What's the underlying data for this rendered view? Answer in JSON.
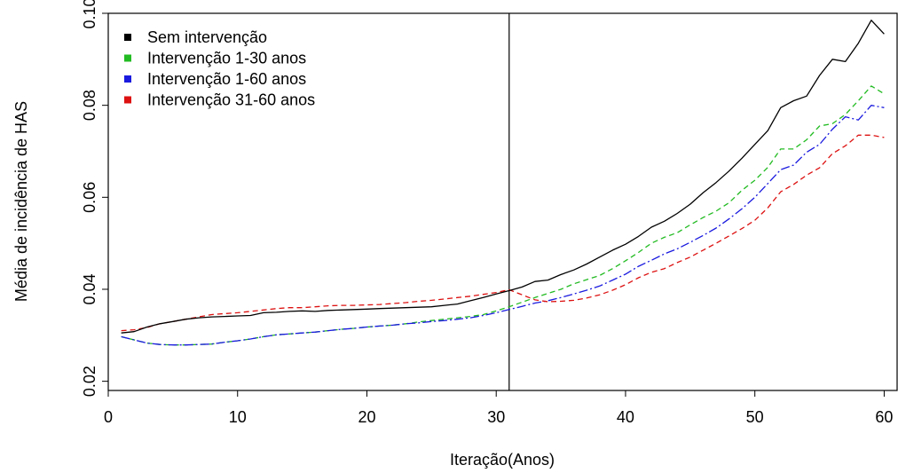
{
  "chart_data": {
    "type": "line",
    "xlabel": "Iteração(Anos)",
    "ylabel": "Média de incidência de HAS",
    "xlim": [
      0,
      61
    ],
    "ylim": [
      0.018,
      0.1
    ],
    "x_ticks": [
      0,
      10,
      20,
      30,
      40,
      50,
      60
    ],
    "y_ticks": [
      0.02,
      0.04,
      0.06,
      0.08,
      0.1
    ],
    "x_tick_labels": [
      "0",
      "10",
      "20",
      "30",
      "40",
      "50",
      "60"
    ],
    "y_tick_labels": [
      "0.02",
      "0.04",
      "0.06",
      "0.08",
      "0.10"
    ],
    "vertical_line_x": 31,
    "grid": false,
    "legend_position": "top-left",
    "x": [
      1,
      2,
      3,
      4,
      5,
      6,
      7,
      8,
      9,
      10,
      11,
      12,
      13,
      14,
      15,
      16,
      17,
      18,
      19,
      20,
      21,
      22,
      23,
      24,
      25,
      26,
      27,
      28,
      29,
      30,
      31,
      32,
      33,
      34,
      35,
      36,
      37,
      38,
      39,
      40,
      41,
      42,
      43,
      44,
      45,
      46,
      47,
      48,
      49,
      50,
      51,
      52,
      53,
      54,
      55,
      56,
      57,
      58,
      59,
      60
    ],
    "series": [
      {
        "name": "Sem intervenção",
        "color": "#000000",
        "dash": "solid",
        "values": [
          0.0305,
          0.0308,
          0.0318,
          0.0325,
          0.033,
          0.0335,
          0.0338,
          0.034,
          0.0341,
          0.0342,
          0.0343,
          0.0349,
          0.035,
          0.0352,
          0.0353,
          0.0352,
          0.0354,
          0.0355,
          0.0356,
          0.0357,
          0.0358,
          0.0359,
          0.036,
          0.0361,
          0.0362,
          0.0365,
          0.0368,
          0.0375,
          0.0382,
          0.039,
          0.0397,
          0.0405,
          0.0417,
          0.042,
          0.0432,
          0.0442,
          0.0455,
          0.047,
          0.0485,
          0.0498,
          0.0515,
          0.0535,
          0.0548,
          0.0565,
          0.0585,
          0.061,
          0.0632,
          0.0657,
          0.0685,
          0.0715,
          0.0745,
          0.0795,
          0.081,
          0.082,
          0.0865,
          0.09,
          0.0895,
          0.0935,
          0.0985,
          0.0955
        ]
      },
      {
        "name": "Intervenção 1-30 anos",
        "color": "#22bb22",
        "dash": "6,4",
        "values": [
          0.0297,
          0.029,
          0.0283,
          0.028,
          0.0279,
          0.0279,
          0.028,
          0.0281,
          0.0285,
          0.0288,
          0.0292,
          0.0297,
          0.0301,
          0.0303,
          0.0305,
          0.0307,
          0.031,
          0.0313,
          0.0315,
          0.0318,
          0.032,
          0.0322,
          0.0325,
          0.0329,
          0.0332,
          0.0335,
          0.0338,
          0.0341,
          0.0345,
          0.0353,
          0.0362,
          0.0372,
          0.0382,
          0.0391,
          0.04,
          0.0412,
          0.0421,
          0.043,
          0.0445,
          0.0462,
          0.048,
          0.05,
          0.0513,
          0.0523,
          0.054,
          0.0556,
          0.057,
          0.0588,
          0.0615,
          0.0637,
          0.0665,
          0.0705,
          0.0705,
          0.0725,
          0.0755,
          0.076,
          0.078,
          0.081,
          0.0842,
          0.0825
        ]
      },
      {
        "name": "Intervenção 1-60 anos",
        "color": "#1a1adf",
        "dash": "10,3,2,3",
        "values": [
          0.0297,
          0.029,
          0.0283,
          0.028,
          0.0279,
          0.0279,
          0.028,
          0.0281,
          0.0285,
          0.0288,
          0.0292,
          0.0297,
          0.0301,
          0.0303,
          0.0305,
          0.0307,
          0.031,
          0.0313,
          0.0315,
          0.0318,
          0.032,
          0.0322,
          0.0325,
          0.0327,
          0.033,
          0.0332,
          0.0335,
          0.0338,
          0.0343,
          0.0349,
          0.0356,
          0.0363,
          0.037,
          0.0375,
          0.0382,
          0.039,
          0.0398,
          0.0407,
          0.042,
          0.0433,
          0.045,
          0.0463,
          0.0477,
          0.0488,
          0.0502,
          0.0517,
          0.0533,
          0.0553,
          0.0575,
          0.06,
          0.063,
          0.066,
          0.067,
          0.0698,
          0.0715,
          0.0748,
          0.0775,
          0.0768,
          0.08,
          0.0795
        ]
      },
      {
        "name": "Intervenção 31-60 anos",
        "color": "#dd1111",
        "dash": "6,4",
        "values": [
          0.031,
          0.0312,
          0.0317,
          0.0325,
          0.033,
          0.0335,
          0.034,
          0.0345,
          0.0347,
          0.0349,
          0.0352,
          0.0355,
          0.0358,
          0.036,
          0.036,
          0.0362,
          0.0364,
          0.0365,
          0.0365,
          0.0366,
          0.0367,
          0.0369,
          0.0371,
          0.0374,
          0.0376,
          0.0379,
          0.0382,
          0.0385,
          0.0389,
          0.0393,
          0.0399,
          0.0388,
          0.0377,
          0.0373,
          0.0374,
          0.0376,
          0.0381,
          0.0388,
          0.0398,
          0.041,
          0.0425,
          0.0437,
          0.0445,
          0.0458,
          0.047,
          0.0485,
          0.05,
          0.0516,
          0.0532,
          0.055,
          0.0577,
          0.0612,
          0.0628,
          0.0648,
          0.0664,
          0.0695,
          0.0712,
          0.0735,
          0.0735,
          0.073
        ]
      }
    ]
  }
}
